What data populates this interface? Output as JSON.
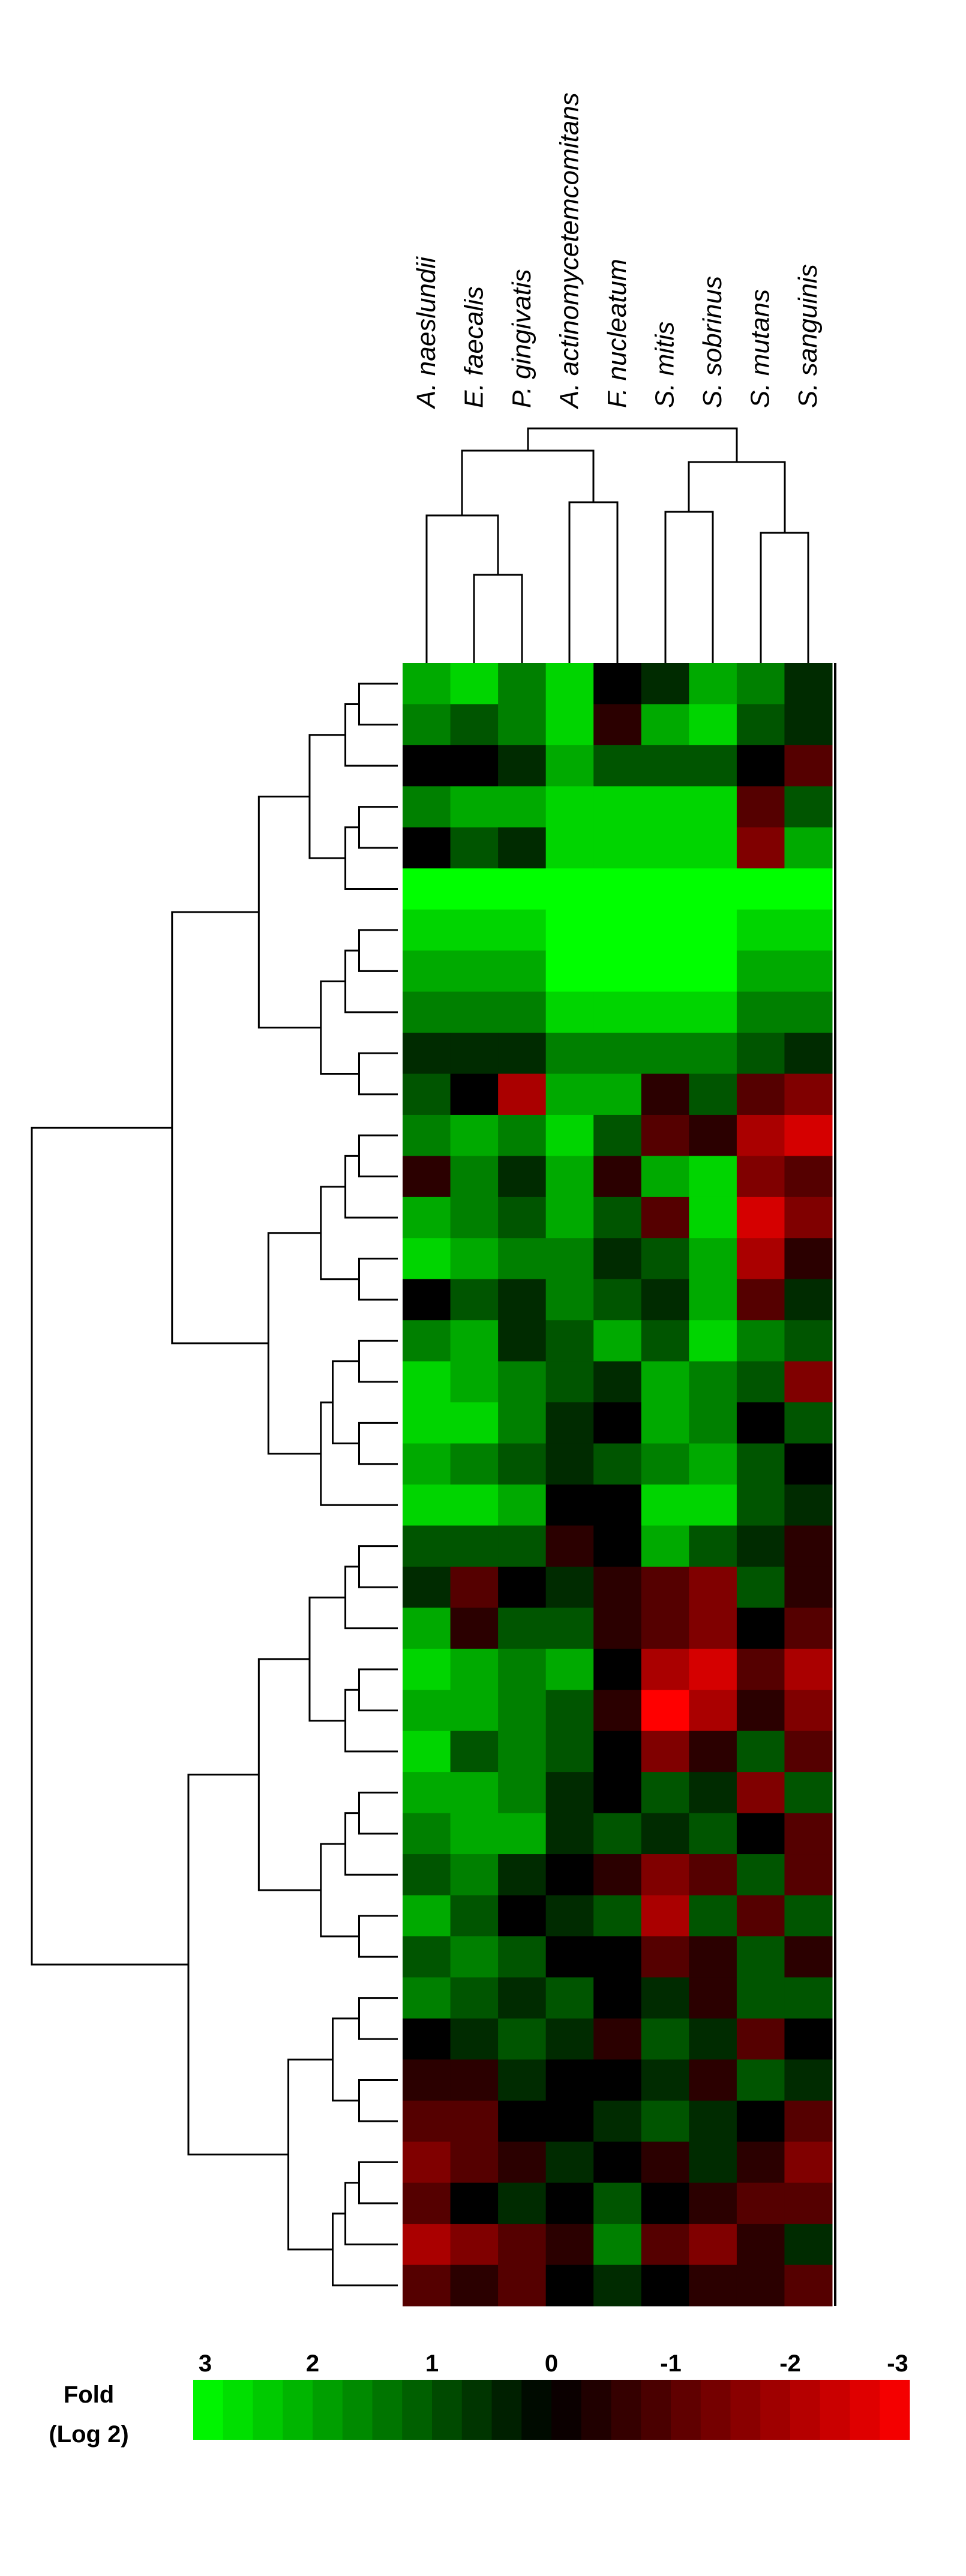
{
  "chart_data": {
    "type": "heatmap",
    "columns": [
      "A. naeslundii",
      "E. faecalis",
      "P. gingivatis",
      "A. actinomycetemcomitans",
      "F. nucleatum",
      "S. mitis",
      "S. sobrinus",
      "S. mutans",
      "S. sanguinis"
    ],
    "values": [
      [
        2,
        2.5,
        1.5,
        2.5,
        0,
        0.5,
        2,
        1.5,
        0.5
      ],
      [
        1.5,
        1,
        1.5,
        2.5,
        -0.5,
        2,
        2.5,
        1,
        0.5
      ],
      [
        0,
        0,
        0.5,
        2,
        1,
        1,
        1,
        0,
        -1
      ],
      [
        1.5,
        2,
        2,
        2.5,
        2.5,
        2.5,
        2.5,
        -1,
        1
      ],
      [
        0,
        1,
        0.5,
        2.5,
        2.5,
        2.5,
        2.5,
        -1.5,
        2
      ],
      [
        3,
        3,
        3,
        3,
        3,
        3,
        3,
        3,
        3
      ],
      [
        2.5,
        2.5,
        2.5,
        3,
        3,
        3,
        3,
        2.5,
        2.5
      ],
      [
        2,
        2,
        2,
        3,
        3,
        3,
        3,
        2,
        2
      ],
      [
        1.5,
        1.5,
        1.5,
        2.5,
        2.5,
        2.5,
        2.5,
        1.5,
        1.5
      ],
      [
        0.5,
        0.5,
        0.5,
        1.5,
        1.5,
        1.5,
        1.5,
        1,
        0.5
      ],
      [
        1,
        0,
        -2,
        2,
        2,
        -0.5,
        1,
        -1,
        -1.5
      ],
      [
        1.5,
        2,
        1.5,
        2.5,
        1,
        -1,
        -0.5,
        -2,
        -2.5
      ],
      [
        -0.5,
        1.5,
        0.5,
        2,
        -0.5,
        2,
        2.5,
        -1.5,
        -1
      ],
      [
        2,
        1.5,
        1,
        2,
        1,
        -1,
        2.5,
        -2.5,
        -1.5
      ],
      [
        2.5,
        2,
        1.5,
        1.5,
        0.5,
        1,
        2,
        -2,
        -0.5
      ],
      [
        0,
        1,
        0.5,
        1.5,
        1,
        0.5,
        2,
        -1,
        0.5
      ],
      [
        1.5,
        2,
        0.5,
        1,
        2,
        1,
        2.5,
        1.5,
        1
      ],
      [
        2.5,
        2,
        1.5,
        1,
        0.5,
        2,
        1.5,
        1,
        -1.5
      ],
      [
        2.5,
        2.5,
        1.5,
        0.5,
        0,
        2,
        1.5,
        0,
        1
      ],
      [
        2,
        1.5,
        1,
        0.5,
        1,
        1.5,
        2,
        1,
        0
      ],
      [
        2.5,
        2.5,
        2,
        0,
        0,
        2.5,
        2.5,
        1,
        0.5
      ],
      [
        1,
        1,
        1,
        -0.5,
        0,
        2,
        1,
        0.5,
        -0.5
      ],
      [
        0.5,
        -1,
        0,
        0.5,
        -0.5,
        -1,
        -1.5,
        1,
        -0.5
      ],
      [
        2,
        -0.5,
        1,
        1,
        -0.5,
        -1,
        -1.5,
        0,
        -1
      ],
      [
        2.5,
        2,
        1.5,
        2,
        0,
        -2,
        -2.5,
        -1,
        -2
      ],
      [
        2,
        2,
        1.5,
        1,
        -0.5,
        -3,
        -2,
        -0.5,
        -1.5
      ],
      [
        2.5,
        1,
        1.5,
        1,
        0,
        -1.5,
        -0.5,
        1,
        -1
      ],
      [
        2,
        2,
        1.5,
        0.5,
        0,
        1,
        0.5,
        -1.5,
        1
      ],
      [
        1.5,
        2,
        2,
        0.5,
        1,
        0.5,
        1,
        0,
        -1
      ],
      [
        1,
        1.5,
        0.5,
        0,
        -0.5,
        -1.5,
        -1,
        1,
        -1
      ],
      [
        2,
        1,
        0,
        0.5,
        1,
        -2,
        1,
        -1,
        1
      ],
      [
        1,
        1.5,
        1,
        0,
        0,
        -1,
        -0.5,
        1,
        -0.5
      ],
      [
        1.5,
        1,
        0.5,
        1,
        0,
        0.5,
        -0.5,
        1,
        1
      ],
      [
        0,
        0.5,
        1,
        0.5,
        -0.5,
        1,
        0.5,
        -1,
        0
      ],
      [
        -0.5,
        -0.5,
        0.5,
        0,
        0,
        0.5,
        -0.5,
        1,
        0.5
      ],
      [
        -1,
        -1,
        0,
        0,
        0.5,
        1,
        0.5,
        0,
        -1
      ],
      [
        -1.5,
        -1,
        -0.5,
        0.5,
        0,
        -0.5,
        0.5,
        -0.5,
        -1.5
      ],
      [
        -1,
        0,
        0.5,
        0,
        1,
        0,
        -0.5,
        -1,
        -1
      ],
      [
        -2,
        -1.5,
        -1,
        -0.5,
        1.5,
        -1,
        -1.5,
        -0.5,
        0.5
      ],
      [
        -1,
        -0.5,
        -1,
        0,
        0.5,
        0,
        -0.5,
        -0.5,
        -1
      ]
    ],
    "colorbar": {
      "title": "Fold",
      "subtitle": "(Log 2)",
      "lim": [
        3,
        -3
      ],
      "ticks": [
        3,
        2,
        1,
        0,
        -1,
        -2,
        -3
      ],
      "high_color": "#00ff00",
      "mid_color": "#000000",
      "low_color": "#ff0000"
    }
  }
}
